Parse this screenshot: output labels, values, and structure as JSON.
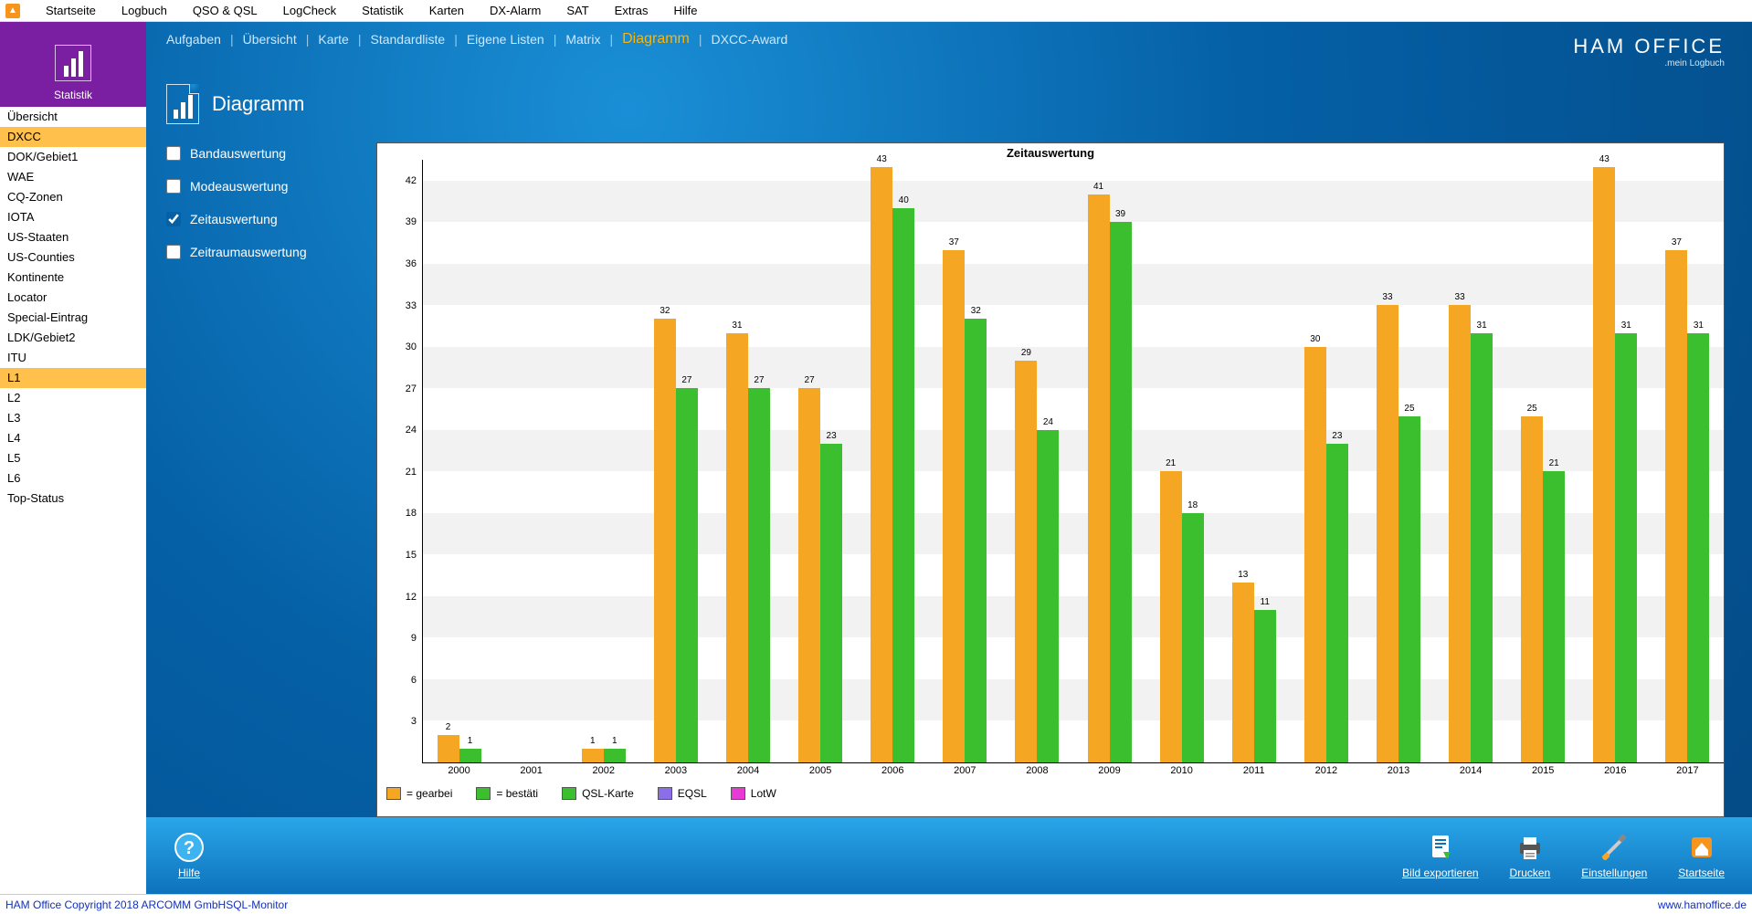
{
  "menubar": [
    "Startseite",
    "Logbuch",
    "QSO & QSL",
    "LogCheck",
    "Statistik",
    "Karten",
    "DX-Alarm",
    "SAT",
    "Extras",
    "Hilfe"
  ],
  "leftHeader": "Statistik",
  "nav": {
    "items": [
      "Übersicht",
      "DXCC",
      "DOK/Gebiet1",
      "WAE",
      "CQ-Zonen",
      "IOTA",
      "US-Staaten",
      "US-Counties",
      "Kontinente",
      "Locator",
      "Special-Eintrag",
      "LDK/Gebiet2",
      "ITU",
      "L1",
      "L2",
      "L3",
      "L4",
      "L5",
      "L6",
      "Top-Status"
    ],
    "activeIndexes": [
      1,
      13
    ]
  },
  "tabs": {
    "items": [
      "Aufgaben",
      "Übersicht",
      "Karte",
      "Standardliste",
      "Eigene Listen",
      "Matrix",
      "Diagramm",
      "DXCC-Award"
    ],
    "activeIndex": 6
  },
  "brand": {
    "line1": "HAM OFFICE",
    "line2": ".mein Logbuch"
  },
  "pageTitle": "Diagramm",
  "filters": [
    {
      "label": "Bandauswertung",
      "checked": false
    },
    {
      "label": "Modeauswertung",
      "checked": false
    },
    {
      "label": "Zeitauswertung",
      "checked": true
    },
    {
      "label": "Zeitraumauswertung",
      "checked": false
    }
  ],
  "chart": {
    "title": "Zeitauswertung",
    "type": "bar",
    "y": {
      "min": 0,
      "max": 43.5,
      "ticks": [
        3,
        6,
        9,
        12,
        15,
        18,
        21,
        24,
        27,
        30,
        33,
        36,
        39,
        42
      ]
    },
    "band_color": "#f2f2f2",
    "categories": [
      "2000",
      "2001",
      "2002",
      "2003",
      "2004",
      "2005",
      "2006",
      "2007",
      "2008",
      "2009",
      "2010",
      "2011",
      "2012",
      "2013",
      "2014",
      "2015",
      "2016",
      "2017"
    ],
    "series": [
      {
        "name": "= gearbei",
        "color": "#f5a623",
        "values": [
          2,
          null,
          1,
          32,
          31,
          27,
          43,
          37,
          29,
          41,
          21,
          13,
          30,
          33,
          33,
          25,
          43,
          37
        ]
      },
      {
        "name": "= bestäti",
        "color": "#3bbf2e",
        "values": [
          1,
          null,
          1,
          27,
          27,
          23,
          40,
          32,
          24,
          39,
          18,
          11,
          23,
          25,
          31,
          21,
          31,
          31
        ]
      }
    ],
    "extra_legend": [
      {
        "name": "QSL-Karte",
        "color": "#3bbf2e"
      },
      {
        "name": "EQSL",
        "color": "#8a6fe8"
      },
      {
        "name": "LotW",
        "color": "#e83bd6"
      }
    ]
  },
  "bottombar": {
    "left": [
      {
        "label": "Hilfe",
        "icon": "help"
      }
    ],
    "right": [
      {
        "label": "Bild exportieren",
        "icon": "export"
      },
      {
        "label": "Drucken",
        "icon": "print"
      },
      {
        "label": "Einstellungen",
        "icon": "settings"
      },
      {
        "label": "Startseite",
        "icon": "home"
      }
    ]
  },
  "statusbar": {
    "left": "HAM Office Copyright 2018 ARCOMM GmbH",
    "center": "SQL-Monitor",
    "right": "www.hamoffice.de"
  }
}
